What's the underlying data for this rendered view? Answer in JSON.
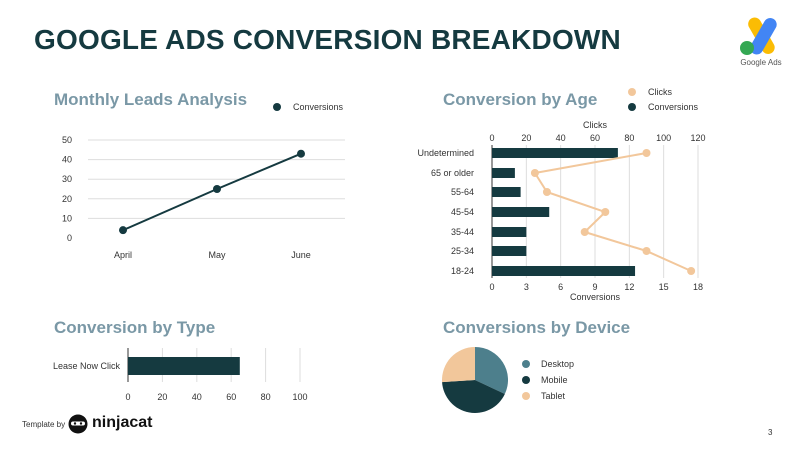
{
  "page": {
    "title": "GOOGLE ADS CONVERSION BREAKDOWN",
    "logo_text": "Google Ads",
    "footer_template": "Template by",
    "footer_brand": "ninjacat",
    "page_number": "3"
  },
  "colors": {
    "dark": "#153a40",
    "peach": "#f2c79b",
    "teal": "#4d7f8c",
    "grid": "#dddddd",
    "title": "#7a98a6"
  },
  "chart_data": [
    {
      "id": "monthly",
      "type": "line",
      "title": "Monthly Leads Analysis",
      "categories": [
        "April",
        "May",
        "June"
      ],
      "series": [
        {
          "name": "Conversions",
          "values": [
            4,
            25,
            43
          ]
        }
      ],
      "yticks": [
        0,
        10,
        20,
        30,
        40,
        50
      ],
      "ylim": [
        0,
        50
      ],
      "legend": "top-right",
      "grid": true
    },
    {
      "id": "age",
      "type": "bar",
      "title": "Conversion by Age",
      "orientation": "horizontal",
      "categories": [
        "Undetermined",
        "65 or older",
        "55-64",
        "45-54",
        "35-44",
        "25-34",
        "18-24"
      ],
      "series": [
        {
          "name": "Conversions",
          "kind": "bar",
          "axis": "bottom",
          "values": [
            11,
            2,
            2.5,
            5,
            3,
            3,
            12.5
          ]
        },
        {
          "name": "Clicks",
          "kind": "line",
          "axis": "top",
          "values": [
            90,
            25,
            32,
            66,
            54,
            90,
            116
          ]
        }
      ],
      "top_axis": {
        "label": "Clicks",
        "ticks": [
          0,
          20,
          40,
          60,
          80,
          100,
          120
        ],
        "range": [
          0,
          120
        ]
      },
      "bottom_axis": {
        "label": "Conversions",
        "ticks": [
          0,
          3,
          6,
          9,
          12,
          15,
          18
        ],
        "range": [
          0,
          18
        ]
      },
      "legend": "top-right",
      "grid": true
    },
    {
      "id": "type",
      "type": "bar",
      "title": "Conversion by Type",
      "orientation": "horizontal",
      "categories": [
        "Lease  Now Click"
      ],
      "series": [
        {
          "name": "Conversions",
          "values": [
            65
          ]
        }
      ],
      "xticks": [
        0,
        20,
        40,
        60,
        80,
        100
      ],
      "xlim": [
        0,
        100
      ],
      "grid": true
    },
    {
      "id": "device",
      "type": "pie",
      "title": "Conversions  by Device",
      "labels": [
        "Desktop",
        "Mobile",
        "Tablet"
      ],
      "values": [
        32,
        42,
        26
      ],
      "colors": [
        "#4d7f8c",
        "#153a40",
        "#f2c79b"
      ],
      "legend": "right"
    }
  ]
}
